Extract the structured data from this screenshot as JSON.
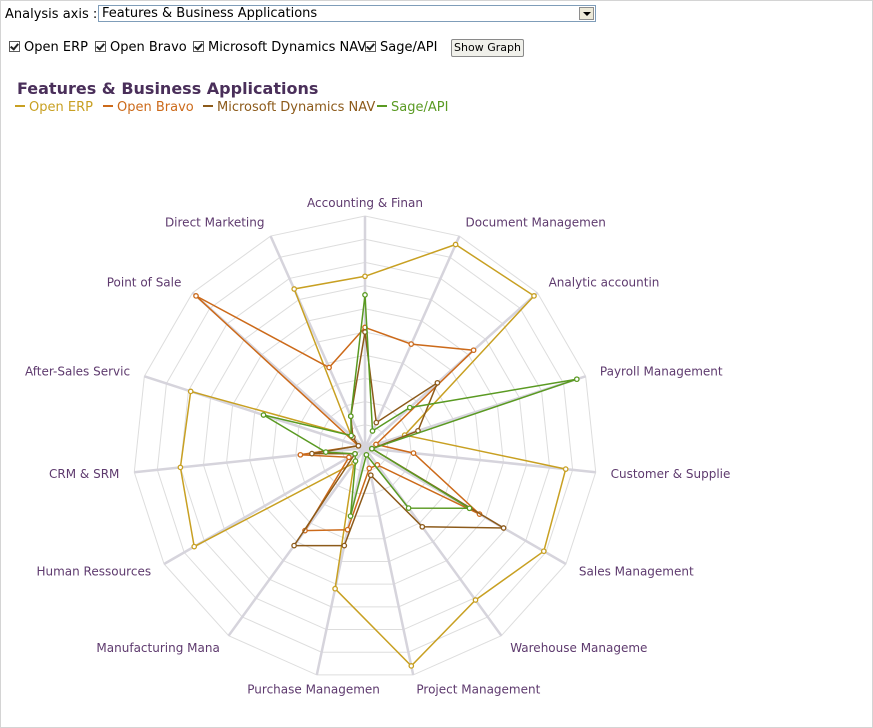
{
  "controls": {
    "axis_label": "Analysis axis :",
    "axis_value": "Features & Business Applications",
    "checkboxes": [
      {
        "label": "Open ERP",
        "checked": true
      },
      {
        "label": "Open Bravo",
        "checked": true
      },
      {
        "label": "Microsoft Dynamics NAV",
        "checked": true
      },
      {
        "label": "Sage/API",
        "checked": true
      }
    ],
    "show_button": "Show Graph"
  },
  "chart_data": {
    "type": "radar",
    "title": "Features & Business Applications",
    "legend_position": "top-left",
    "axes": [
      "Accounting & Finan",
      "Document Managemen",
      "Analytic accountin",
      "Payroll Management",
      "Customer & Supplie",
      "Sales Management",
      "Warehouse Manageme",
      "Project Management",
      "Purchase Managemen",
      "Manufacturing Mana",
      "Human Ressources",
      "CRM & SRM",
      "After-Sales Servic",
      "Point of Sale",
      "Direct Marketing"
    ],
    "range": [
      0,
      10
    ],
    "grid": true,
    "series": [
      {
        "name": "Open ERP",
        "color": "#c8a022",
        "values": [
          7.4,
          9.6,
          9.8,
          1.8,
          8.7,
          8.9,
          8.1,
          9.6,
          6.2,
          0.8,
          8.5,
          8.0,
          7.9,
          0.8,
          7.5
        ]
      },
      {
        "name": "Open Bravo",
        "color": "#cc6a1a",
        "values": [
          5.2,
          4.9,
          6.3,
          0.5,
          2.1,
          5.7,
          0.9,
          0.9,
          3.6,
          4.4,
          0.8,
          2.8,
          0.3,
          9.8,
          3.8
        ]
      },
      {
        "name": "Microsoft Dynamics NAV",
        "color": "#8c5a1a",
        "values": [
          5.0,
          1.2,
          4.2,
          2.4,
          0.3,
          6.9,
          4.2,
          1.2,
          4.3,
          5.2,
          0.5,
          2.3,
          0.3,
          0.7,
          1.5
        ]
      },
      {
        "name": "Sage/API",
        "color": "#5a9a22",
        "values": [
          6.6,
          0.8,
          2.6,
          9.6,
          0.3,
          5.2,
          3.2,
          0.3,
          3.0,
          0.7,
          0.5,
          1.7,
          4.6,
          0.8,
          1.5
        ]
      }
    ]
  }
}
